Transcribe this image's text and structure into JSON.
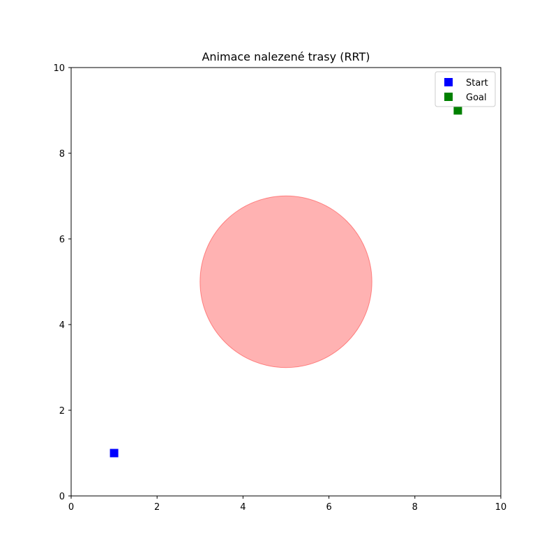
{
  "chart_data": {
    "type": "scatter",
    "title": "Animace nalezené trasy (RRT)",
    "xlabel": "",
    "ylabel": "",
    "xlim": [
      0,
      10
    ],
    "ylim": [
      0,
      10
    ],
    "x_ticks": [
      "0",
      "2",
      "4",
      "6",
      "8",
      "10"
    ],
    "y_ticks": [
      "0",
      "2",
      "4",
      "6",
      "8",
      "10"
    ],
    "grid": false,
    "legend_position": "top-right",
    "series": [
      {
        "name": "Start",
        "marker": "square",
        "color": "#0000ff",
        "points": [
          [
            1,
            1
          ]
        ]
      },
      {
        "name": "Goal",
        "marker": "square",
        "color": "#008000",
        "points": [
          [
            9,
            9
          ]
        ]
      }
    ],
    "obstacles": [
      {
        "shape": "circle",
        "center": [
          5,
          5
        ],
        "radius": 2,
        "color": "#ff0000",
        "alpha": 0.3
      }
    ]
  }
}
